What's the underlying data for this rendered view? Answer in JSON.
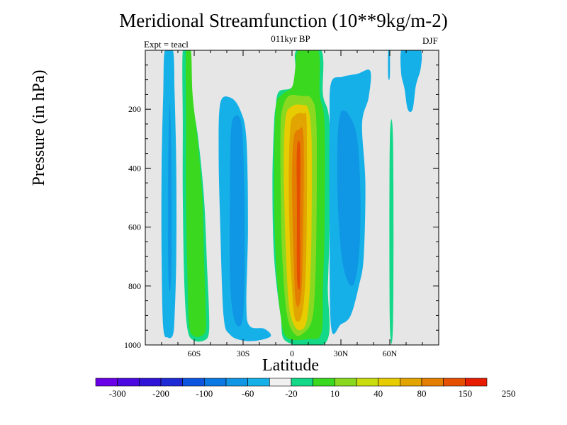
{
  "chart_data": {
    "type": "contour",
    "title": "Meridional Streamfunction (10**9kg/m-2)",
    "subtitle": "011kyr BP",
    "left_label": "Expt = teacl",
    "right_label": "DJF",
    "xlabel": "Latitude",
    "ylabel": "Pressure (in hPa)",
    "xlim": [
      -90,
      90
    ],
    "ylim": [
      1000,
      0
    ],
    "x_ticks": [
      {
        "value": -60,
        "label": "60S"
      },
      {
        "value": -30,
        "label": "30S"
      },
      {
        "value": 0,
        "label": "0"
      },
      {
        "value": 30,
        "label": "30N"
      },
      {
        "value": 60,
        "label": "60N"
      }
    ],
    "y_ticks": [
      {
        "value": 200,
        "label": "200"
      },
      {
        "value": 400,
        "label": "400"
      },
      {
        "value": 600,
        "label": "600"
      },
      {
        "value": 800,
        "label": "800"
      },
      {
        "value": 1000,
        "label": "1000"
      }
    ],
    "missing_color": "#e6e6e6",
    "colorbar": {
      "levels": [
        "-300",
        "-200",
        "-100",
        "-60",
        "-20",
        "10",
        "40",
        "80",
        "150",
        "250"
      ],
      "colors": [
        "#6a00e8",
        "#4b08e0",
        "#2f12d8",
        "#1d2ad6",
        "#0d55de",
        "#0a78e3",
        "#0f96e4",
        "#16b0e8",
        "#f0f0f0",
        "#12d888",
        "#3ad81e",
        "#8ad820",
        "#c9dc0e",
        "#e6cc00",
        "#e2a400",
        "#e47e00",
        "#e45000",
        "#e81c00"
      ]
    },
    "regions": [
      {
        "name": "sh-polar-cell",
        "value": -20,
        "color": "#16b0e8",
        "outline": [
          [
            -78,
            0
          ],
          [
            -73,
            0
          ],
          [
            -72,
            150
          ],
          [
            -71,
            400
          ],
          [
            -71,
            700
          ],
          [
            -72,
            900
          ],
          [
            -73,
            965
          ],
          [
            -76,
            975
          ],
          [
            -79,
            940
          ],
          [
            -80,
            700
          ],
          [
            -80,
            400
          ],
          [
            -79,
            150
          ]
        ]
      },
      {
        "name": "sh-polar-core",
        "value": -60,
        "color": "#0f96e4",
        "outline": [
          [
            -75,
            180
          ],
          [
            -74,
            400
          ],
          [
            -74,
            720
          ],
          [
            -75,
            820
          ],
          [
            -76,
            720
          ],
          [
            -76,
            400
          ]
        ]
      },
      {
        "name": "sh-ferrel-outer",
        "value": 10,
        "color": "#12d888",
        "outline": [
          [
            -67,
            0
          ],
          [
            -63,
            0
          ],
          [
            -62,
            150
          ],
          [
            -58,
            280
          ],
          [
            -54,
            500
          ],
          [
            -52,
            750
          ],
          [
            -51,
            870
          ],
          [
            -51,
            960
          ],
          [
            -54,
            985
          ],
          [
            -60,
            985
          ],
          [
            -64,
            950
          ],
          [
            -66,
            800
          ],
          [
            -67,
            500
          ],
          [
            -67,
            250
          ]
        ]
      },
      {
        "name": "sh-ferrel-core",
        "value": 40,
        "color": "#3ad81e",
        "outline": [
          [
            -65,
            0
          ],
          [
            -62,
            0
          ],
          [
            -61,
            150
          ],
          [
            -58,
            300
          ],
          [
            -55,
            500
          ],
          [
            -54,
            700
          ],
          [
            -53,
            870
          ],
          [
            -53,
            950
          ],
          [
            -56,
            970
          ],
          [
            -60,
            970
          ],
          [
            -63,
            940
          ],
          [
            -64,
            800
          ],
          [
            -65,
            500
          ],
          [
            -65,
            250
          ]
        ]
      },
      {
        "name": "sh-mid-cell",
        "value": -20,
        "color": "#16b0e8",
        "outline": [
          [
            -44,
            180
          ],
          [
            -38,
            160
          ],
          [
            -32,
            200
          ],
          [
            -28,
            300
          ],
          [
            -27,
            600
          ],
          [
            -28,
            860
          ],
          [
            -26,
            935
          ],
          [
            -17,
            945
          ],
          [
            -13,
            970
          ],
          [
            -21,
            985
          ],
          [
            -30,
            985
          ],
          [
            -38,
            965
          ],
          [
            -42,
            900
          ],
          [
            -44,
            600
          ],
          [
            -45,
            350
          ]
        ]
      },
      {
        "name": "sh-mid-core",
        "value": -60,
        "color": "#0f96e4",
        "outline": [
          [
            -37,
            250
          ],
          [
            -32,
            230
          ],
          [
            -30,
            330
          ],
          [
            -29,
            600
          ],
          [
            -30,
            900
          ],
          [
            -35,
            920
          ],
          [
            -38,
            780
          ],
          [
            -38,
            450
          ]
        ]
      },
      {
        "name": "hadley-10",
        "value": 10,
        "color": "#12d888",
        "outline": [
          [
            -10,
            190
          ],
          [
            -8,
            140
          ],
          [
            0,
            125
          ],
          [
            2,
            60
          ],
          [
            3,
            0
          ],
          [
            18,
            0
          ],
          [
            19,
            150
          ],
          [
            23,
            250
          ],
          [
            23,
            600
          ],
          [
            22,
            800
          ],
          [
            21,
            990
          ],
          [
            -3,
            990
          ],
          [
            -7,
            900
          ],
          [
            -11,
            700
          ],
          [
            -12,
            450
          ],
          [
            -11,
            250
          ]
        ]
      },
      {
        "name": "hadley-40",
        "value": 40,
        "color": "#3ad81e",
        "outline": [
          [
            -10,
            200
          ],
          [
            -6,
            150
          ],
          [
            0,
            125
          ],
          [
            2,
            65
          ],
          [
            4,
            0
          ],
          [
            16,
            0
          ],
          [
            17,
            150
          ],
          [
            20,
            250
          ],
          [
            20,
            600
          ],
          [
            19,
            800
          ],
          [
            18,
            960
          ],
          [
            10,
            980
          ],
          [
            -3,
            975
          ],
          [
            -7,
            900
          ],
          [
            -10,
            700
          ],
          [
            -11,
            450
          ]
        ]
      },
      {
        "name": "hadley-80",
        "value": 80,
        "color": "#8ad820",
        "outline": [
          [
            -6,
            200
          ],
          [
            -2,
            155
          ],
          [
            6,
            155
          ],
          [
            12,
            165
          ],
          [
            15,
            250
          ],
          [
            15,
            600
          ],
          [
            14,
            820
          ],
          [
            12,
            920
          ],
          [
            7,
            960
          ],
          [
            2,
            965
          ],
          [
            -3,
            900
          ],
          [
            -6,
            700
          ],
          [
            -7,
            450
          ],
          [
            -7,
            260
          ]
        ]
      },
      {
        "name": "hadley-150",
        "value": 150,
        "color": "#e6cc00",
        "outline": [
          [
            -4,
            230
          ],
          [
            0,
            190
          ],
          [
            6,
            185
          ],
          [
            10,
            200
          ],
          [
            12,
            300
          ],
          [
            12,
            600
          ],
          [
            11,
            800
          ],
          [
            9,
            920
          ],
          [
            5,
            950
          ],
          [
            1,
            930
          ],
          [
            -2,
            860
          ],
          [
            -4,
            650
          ],
          [
            -5,
            400
          ]
        ]
      },
      {
        "name": "hadley-200",
        "value": 200,
        "color": "#e2a400",
        "outline": [
          [
            -1,
            260
          ],
          [
            2,
            220
          ],
          [
            7,
            215
          ],
          [
            9,
            250
          ],
          [
            9,
            600
          ],
          [
            8,
            800
          ],
          [
            6,
            900
          ],
          [
            3,
            920
          ],
          [
            1,
            880
          ],
          [
            -1,
            700
          ],
          [
            -2,
            450
          ]
        ]
      },
      {
        "name": "hadley-250",
        "value": 250,
        "color": "#e47e00",
        "outline": [
          [
            1,
            300
          ],
          [
            4,
            270
          ],
          [
            7,
            290
          ],
          [
            7,
            560
          ],
          [
            6,
            800
          ],
          [
            4,
            870
          ],
          [
            2,
            840
          ],
          [
            1,
            700
          ],
          [
            0,
            450
          ]
        ]
      },
      {
        "name": "hadley-300",
        "value": 300,
        "color": "#e45000",
        "outline": [
          [
            3,
            340
          ],
          [
            5,
            330
          ],
          [
            5,
            560
          ],
          [
            5,
            780
          ],
          [
            4,
            810
          ],
          [
            3,
            760
          ],
          [
            3,
            560
          ]
        ]
      },
      {
        "name": "nh-ferrel-cell",
        "value": -20,
        "color": "#16b0e8",
        "outline": [
          [
            24,
            110
          ],
          [
            31,
            90
          ],
          [
            40,
            80
          ],
          [
            48,
            70
          ],
          [
            47,
            160
          ],
          [
            43,
            250
          ],
          [
            45,
            450
          ],
          [
            44,
            700
          ],
          [
            41,
            800
          ],
          [
            36,
            900
          ],
          [
            30,
            930
          ],
          [
            24,
            940
          ],
          [
            23,
            600
          ],
          [
            23,
            250
          ]
        ]
      },
      {
        "name": "nh-ferrel-core",
        "value": -60,
        "color": "#0f96e4",
        "outline": [
          [
            30,
            210
          ],
          [
            35,
            220
          ],
          [
            40,
            300
          ],
          [
            42,
            500
          ],
          [
            41,
            700
          ],
          [
            37,
            800
          ],
          [
            31,
            720
          ],
          [
            28,
            500
          ],
          [
            28,
            300
          ]
        ]
      },
      {
        "name": "nh-polar-patch",
        "value": 10,
        "color": "#12d888",
        "outline": [
          [
            60,
            310
          ],
          [
            62,
            310
          ],
          [
            62,
            920
          ],
          [
            60,
            920
          ]
        ]
      },
      {
        "name": "nh-high-cell",
        "value": -20,
        "color": "#16b0e8",
        "outline": [
          [
            67,
            0
          ],
          [
            72,
            0
          ],
          [
            79,
            0
          ],
          [
            79,
            60
          ],
          [
            76,
            120
          ],
          [
            74,
            200
          ],
          [
            71,
            200
          ],
          [
            69,
            130
          ],
          [
            67,
            80
          ]
        ]
      },
      {
        "name": "nh-high-strip",
        "value": -20,
        "color": "#16b0e8",
        "outline": [
          [
            59,
            0
          ],
          [
            60,
            0
          ],
          [
            60,
            90
          ],
          [
            59,
            90
          ]
        ]
      }
    ]
  }
}
